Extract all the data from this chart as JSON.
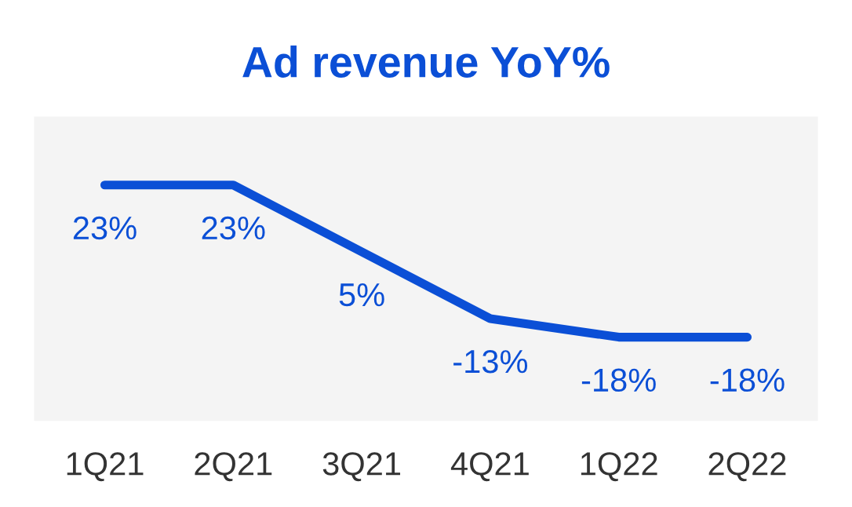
{
  "chart_data": {
    "type": "line",
    "title": "Ad revenue YoY%",
    "categories": [
      "1Q21",
      "2Q21",
      "3Q21",
      "4Q21",
      "1Q22",
      "2Q22"
    ],
    "series": [
      {
        "color": "#0b4fd6",
        "values": [
          23,
          23,
          5,
          -13,
          -18,
          -18
        ],
        "value_labels": [
          "23%",
          "23%",
          "5%",
          "-13%",
          "-18%",
          "-18%"
        ]
      }
    ],
    "grid": false,
    "marker": "none",
    "line_style": "solid"
  }
}
